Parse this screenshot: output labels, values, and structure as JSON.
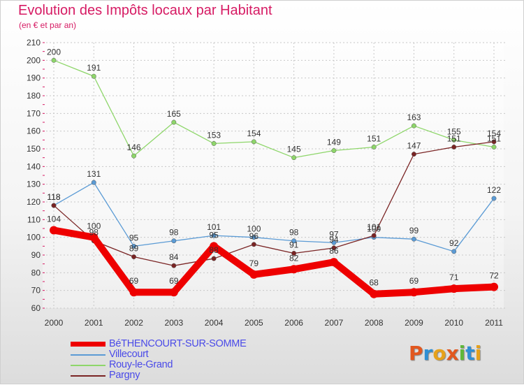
{
  "chart_data": {
    "type": "line",
    "title": "Evolution des Impôts locaux par Habitant",
    "subtitle": "(en € et par an)",
    "x": [
      "2000",
      "2001",
      "2002",
      "2003",
      "2004",
      "2005",
      "2006",
      "2007",
      "2008",
      "2009",
      "2010",
      "2011"
    ],
    "ylim": [
      60,
      210
    ],
    "yticks": [
      60,
      70,
      80,
      90,
      100,
      110,
      120,
      130,
      140,
      150,
      160,
      170,
      180,
      190,
      200,
      210
    ],
    "grid": true,
    "legend_position": "bottom-left",
    "series": [
      {
        "name": "BéTHENCOURT-SUR-SOMME",
        "color": "#ee0000",
        "values": [
          104,
          100,
          69,
          69,
          95,
          79,
          82,
          86,
          68,
          69,
          71,
          72
        ]
      },
      {
        "name": "Villecourt",
        "color": "#5b9bd5",
        "values": [
          118,
          131,
          95,
          98,
          101,
          100,
          98,
          97,
          100,
          99,
          92,
          122
        ]
      },
      {
        "name": "Rouy-le-Grand",
        "color": "#8ed66a",
        "values": [
          200,
          191,
          146,
          165,
          153,
          154,
          145,
          149,
          151,
          163,
          155,
          151
        ]
      },
      {
        "name": "Pargny",
        "color": "#7a2424",
        "values": [
          118,
          98,
          89,
          84,
          88,
          96,
          91,
          94,
          101,
          147,
          151,
          154
        ]
      }
    ]
  },
  "logo": {
    "letters": [
      "P",
      "r",
      "o",
      "x",
      "i",
      "t",
      "i"
    ],
    "colors": [
      "#e2571f",
      "#2f8fd3",
      "#e6a11a",
      "#e2571f",
      "#5fb83a",
      "#2f8fd3",
      "#e6a11a"
    ]
  }
}
